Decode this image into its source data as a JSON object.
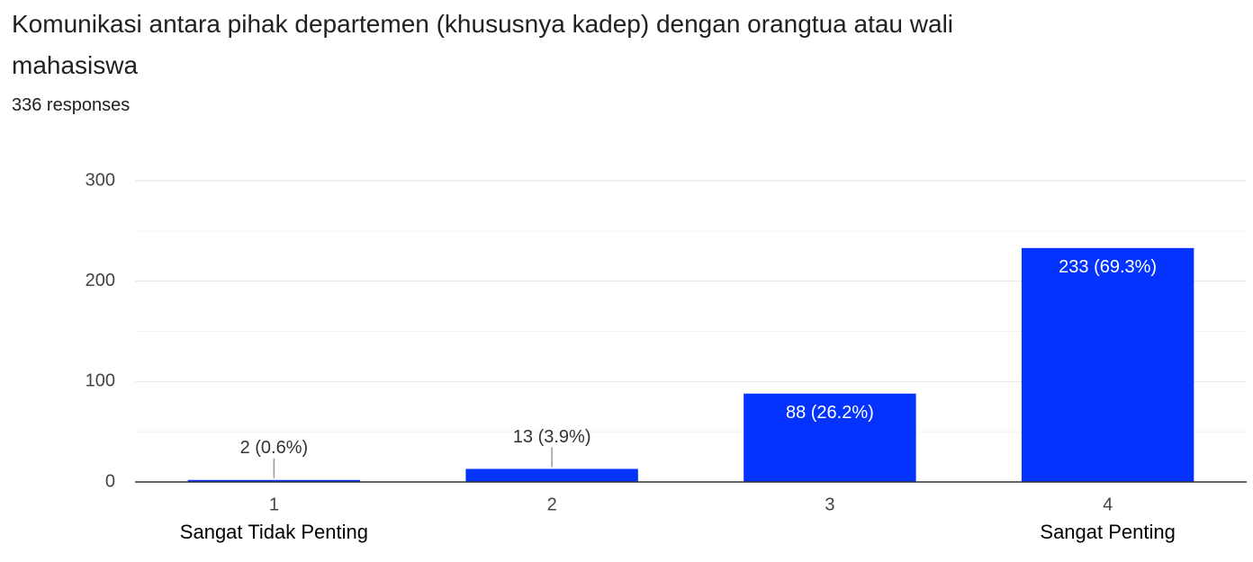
{
  "chart_data": {
    "type": "bar",
    "title": "Komunikasi antara pihak departemen (khususnya kadep) dengan orangtua atau wali mahasiswa",
    "subtitle": "336 responses",
    "categories": [
      "1",
      "2",
      "3",
      "4"
    ],
    "values": [
      2,
      13,
      88,
      233
    ],
    "value_labels": [
      "2 (0.6%)",
      "13 (3.9%)",
      "88 (26.2%)",
      "233 (69.3%)"
    ],
    "low_label": "Sangat Tidak Penting",
    "high_label": "Sangat Penting",
    "color": "#0433ff",
    "ylim": [
      0,
      300
    ],
    "yticks": [
      0,
      100,
      200,
      300
    ],
    "minor_yticks": [
      50,
      150,
      250
    ],
    "grid": true
  }
}
